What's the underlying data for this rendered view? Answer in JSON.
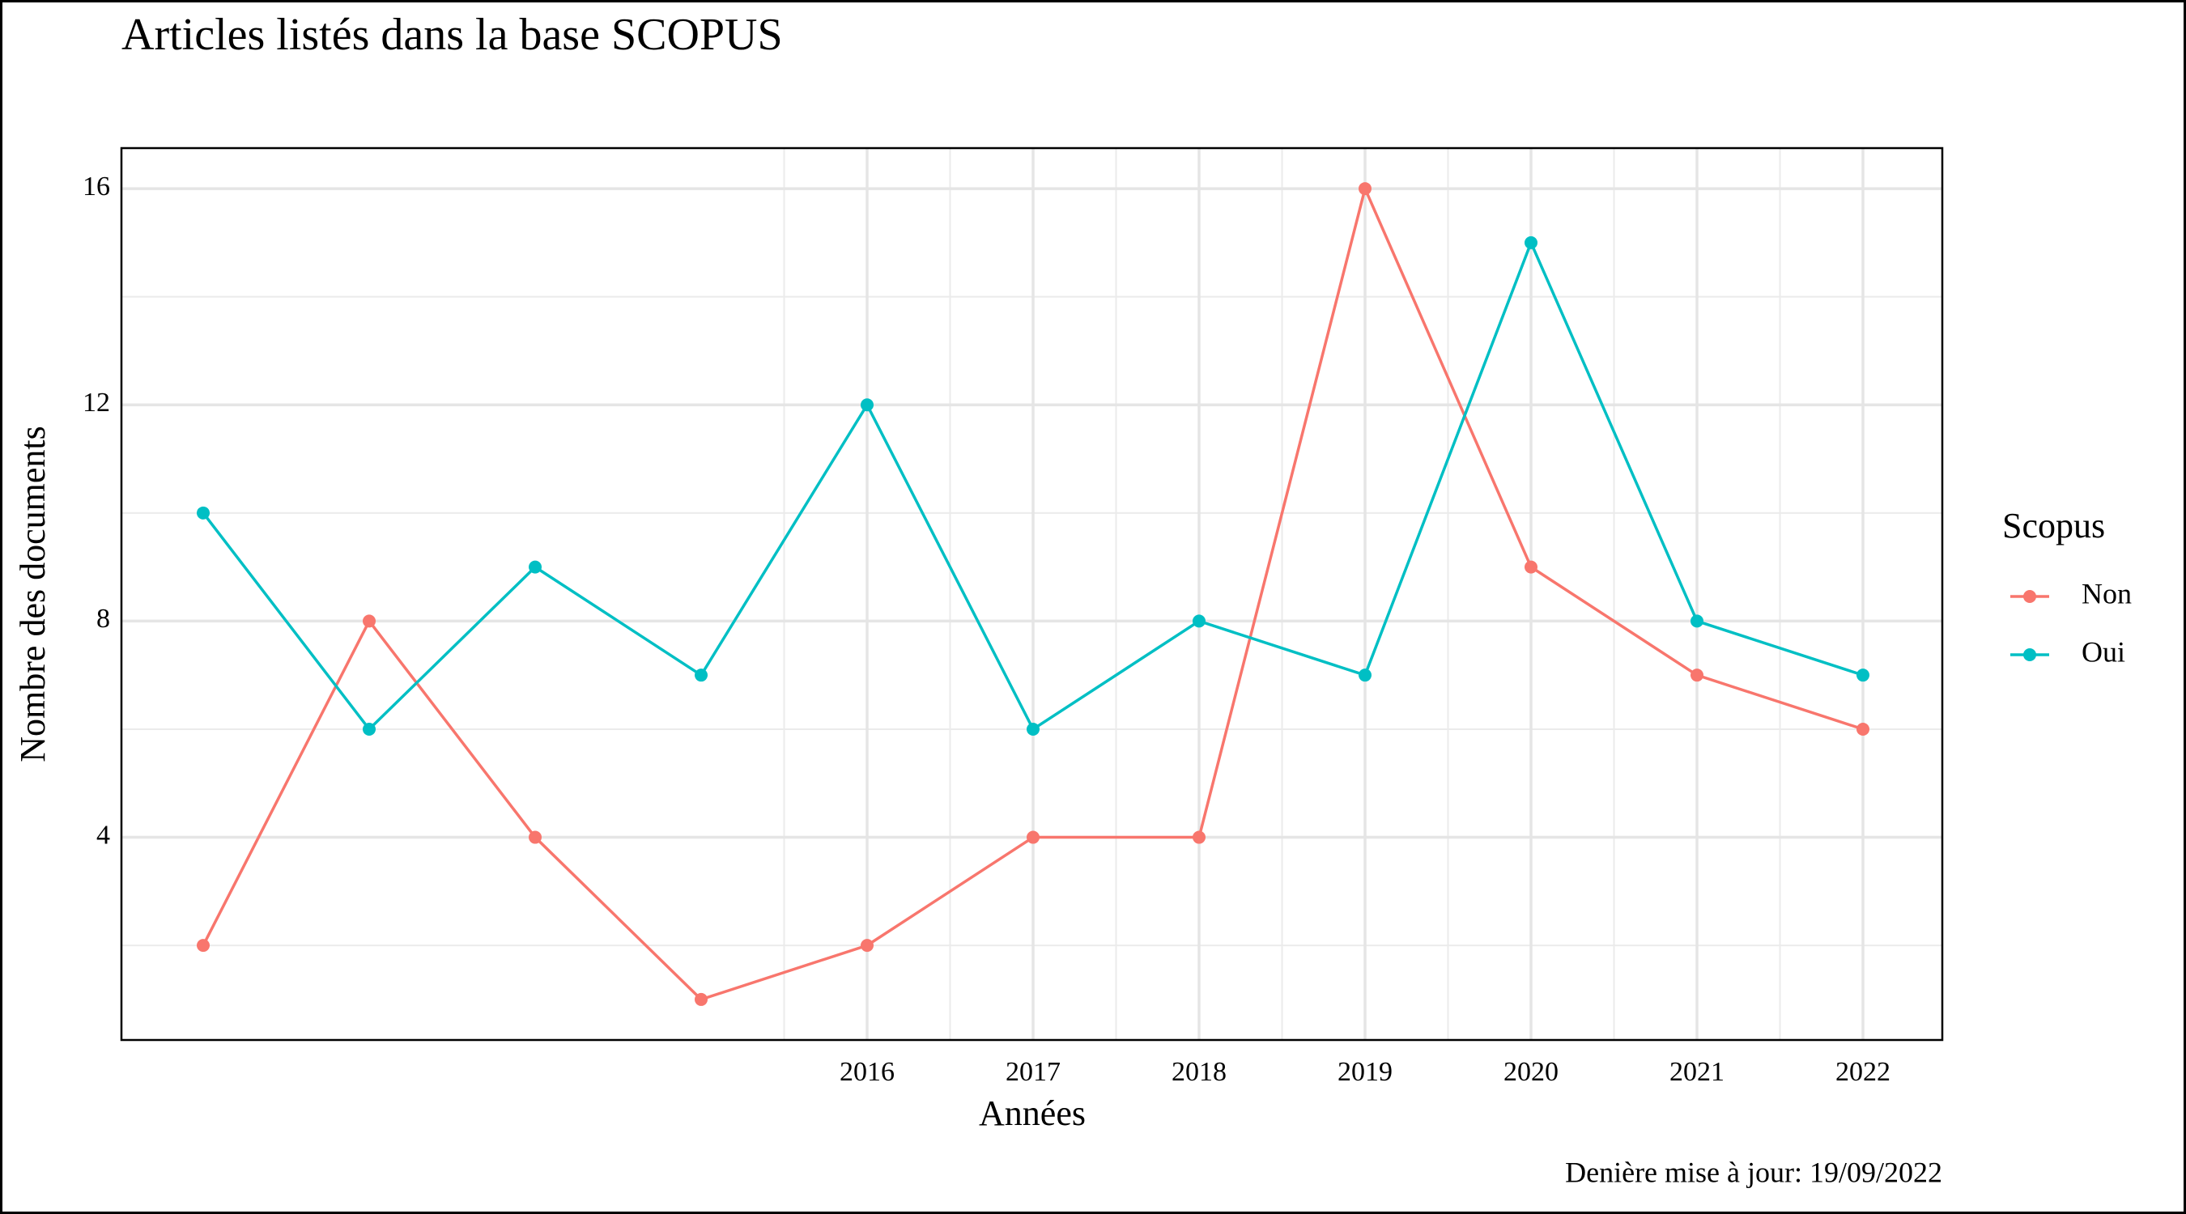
{
  "chart_data": {
    "type": "line",
    "title": "Articles listés dans la base SCOPUS",
    "x_label": "Années",
    "y_label": "Nombre des documents",
    "legend_title": "Scopus",
    "caption": "Denière mise à jour: 19/09/2022",
    "categories": [
      null,
      null,
      null,
      null,
      "2016",
      "2017",
      "2018",
      "2019",
      "2020",
      "2021",
      "2022"
    ],
    "series": [
      {
        "name": "Non",
        "color": "#f8766d",
        "values": [
          2,
          8,
          4,
          1,
          2,
          4,
          4,
          16,
          9,
          7,
          6
        ]
      },
      {
        "name": "Oui",
        "color": "#00bfc4",
        "values": [
          10,
          6,
          9,
          7,
          12,
          6,
          8,
          7,
          15,
          8,
          7
        ]
      }
    ],
    "ylim": [
      0.25,
      16.75
    ],
    "yticks": [
      4,
      8,
      12,
      16
    ],
    "grid": true,
    "legend_position": "right"
  }
}
